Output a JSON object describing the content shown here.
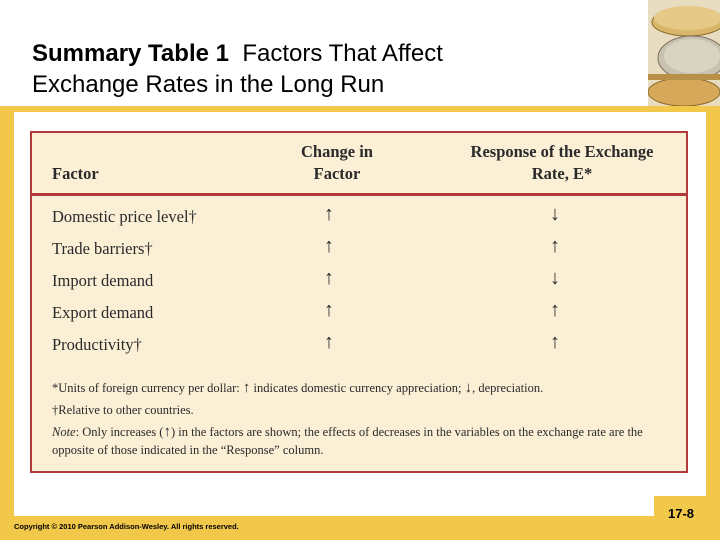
{
  "slide": {
    "title_bold": "Summary Table 1",
    "title_rest": "Factors That Affect",
    "title_line2": "Exchange Rates in the Long Run",
    "copyright": "Copyright © 2010 Pearson Addison-Wesley. All rights reserved.",
    "slide_number": "17-8"
  },
  "table": {
    "headers": {
      "factor": "Factor",
      "change_line1": "Change in",
      "change_line2": "Factor",
      "response_line1": "Response of the Exchange",
      "response_line2": "Rate, E*"
    },
    "rows": [
      {
        "factor": "Domestic price level†",
        "change": "↑",
        "response": "↓"
      },
      {
        "factor": "Trade barriers†",
        "change": "↑",
        "response": "↑"
      },
      {
        "factor": "Import demand",
        "change": "↑",
        "response": "↓"
      },
      {
        "factor": "Export demand",
        "change": "↑",
        "response": "↑"
      },
      {
        "factor": "Productivity†",
        "change": "↑",
        "response": "↑"
      }
    ],
    "notes": {
      "n1_a": "*Units of foreign currency per dollar: ",
      "n1_up": "↑",
      "n1_b": " indicates domestic currency appreciation; ",
      "n1_down": "↓",
      "n1_c": ", depreciation.",
      "n2": "†Relative to other countries.",
      "n3_label": "Note",
      "n3_a": ": Only increases (",
      "n3_up": "↑",
      "n3_b": ") in the factors are shown; the effects of decreases in the variables on the exchange rate are the opposite of those indicated in the “Response” column."
    }
  },
  "colors": {
    "accent": "#f2c84b",
    "border": "#b23a3a",
    "panel": "#fbefd6"
  },
  "icons": {
    "coins": "coins-image"
  }
}
